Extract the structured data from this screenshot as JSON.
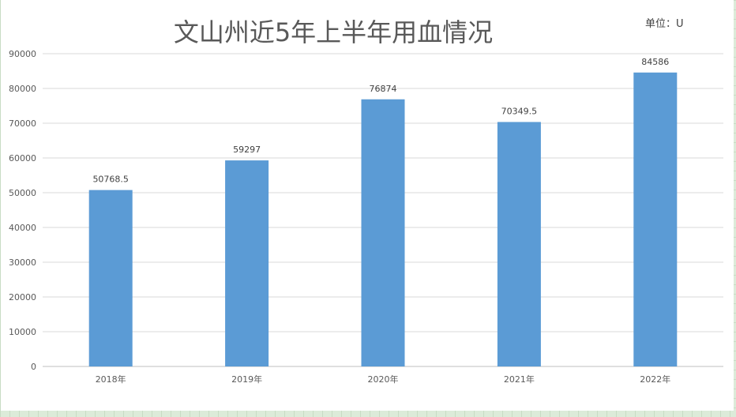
{
  "chart_data": {
    "type": "bar",
    "title": "文山州近5年上半年用血情况",
    "unit": "单位：U",
    "categories": [
      "2018年",
      "2019年",
      "2020年",
      "2021年",
      "2022年"
    ],
    "values": [
      50768.5,
      59297,
      76874,
      70349.5,
      84586
    ],
    "data_labels": [
      "50768.5",
      "59297",
      "76874",
      "70349.5",
      "84586"
    ],
    "y_ticks": [
      "0",
      "10000",
      "20000",
      "30000",
      "40000",
      "50000",
      "60000",
      "70000",
      "80000",
      "90000"
    ],
    "ylim": [
      0,
      90000
    ],
    "grid": true,
    "legend": "none",
    "bar_color": "#5b9bd5",
    "gridline_color": "#d9d9d9"
  }
}
